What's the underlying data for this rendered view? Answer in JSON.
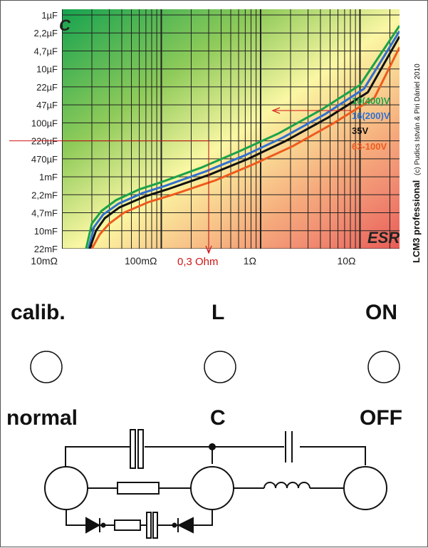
{
  "chart_data": {
    "type": "line",
    "title": "",
    "corner_label_c": "C",
    "corner_label_esr": "ESR",
    "y_ticks": [
      "1µF",
      "2,2µF",
      "4,7µF",
      "10µF",
      "22µF",
      "47µF",
      "100µF",
      "220µF",
      "470µF",
      "1mF",
      "2,2mF",
      "4,7mF",
      "10mF",
      "22mF"
    ],
    "x_ticks": [
      "10mΩ",
      "100mΩ",
      "1Ω",
      "10Ω"
    ],
    "x_log": true,
    "xlim_ohm": [
      0.01,
      25
    ],
    "series": [
      {
        "name": "10(400)V",
        "color": "#1aa34a",
        "x": [
          0.0175,
          0.02,
          0.025,
          0.035,
          0.06,
          0.1,
          0.25,
          0.6,
          1.5,
          4,
          10,
          25
        ],
        "y_index": [
          13,
          11.6,
          10.9,
          10.3,
          9.7,
          9.3,
          8.5,
          7.6,
          6.6,
          5.3,
          3.9,
          0.6
        ]
      },
      {
        "name": "16(200)V",
        "color": "#2f6fd0",
        "x": [
          0.0185,
          0.021,
          0.026,
          0.037,
          0.065,
          0.11,
          0.28,
          0.7,
          1.7,
          4.5,
          11,
          25
        ],
        "y_index": [
          13,
          11.8,
          11.1,
          10.5,
          9.9,
          9.5,
          8.7,
          7.8,
          6.8,
          5.5,
          4.1,
          0.9
        ]
      },
      {
        "name": "35V",
        "color": "#111111",
        "x": [
          0.019,
          0.022,
          0.027,
          0.038,
          0.068,
          0.115,
          0.3,
          0.75,
          1.8,
          4.8,
          12,
          25
        ],
        "y_index": [
          13,
          12,
          11.3,
          10.7,
          10.1,
          9.7,
          8.9,
          8.0,
          7.0,
          5.7,
          4.3,
          1.2
        ]
      },
      {
        "name": "63-100V",
        "color": "#ee5a1e",
        "x": [
          0.02,
          0.024,
          0.03,
          0.042,
          0.075,
          0.13,
          0.35,
          0.85,
          2.1,
          5.5,
          14,
          25
        ],
        "y_index": [
          13,
          12.2,
          11.6,
          11.0,
          10.4,
          10.0,
          9.2,
          8.3,
          7.3,
          6.0,
          4.6,
          1.8
        ]
      }
    ],
    "annotation": {
      "label": "0,3 Ohm",
      "x_ohm": 0.3,
      "y_value": "220µF"
    }
  },
  "vertical_caption": "LCM3 professional",
  "copyright": "(c) Pudics István & Piri Dániel 2010",
  "controls": {
    "left_top": "calib.",
    "center_top": "L",
    "right_top": "ON",
    "left_bottom": "normal",
    "center_bottom": "C",
    "right_bottom": "OFF"
  }
}
